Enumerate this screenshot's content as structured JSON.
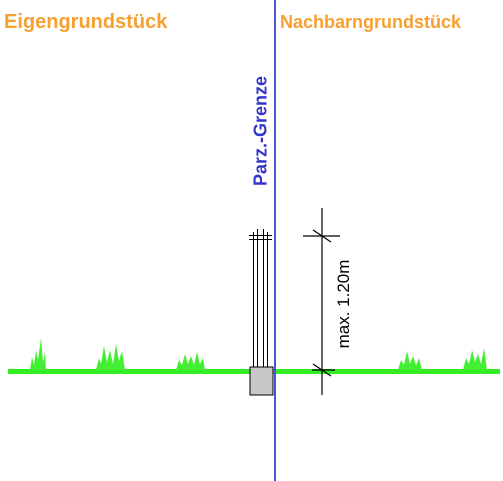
{
  "labels": {
    "own_property": "Eigengrundstück",
    "neighbor_property": "Nachbarngrundstück",
    "boundary": "Parz.-Grenze",
    "max_height": "max. 1.20m"
  },
  "colors": {
    "property_label": "#f7a030",
    "boundary_line": "#5050d8",
    "boundary_label": "#3434c8",
    "ground": "#33ee22",
    "grass": "#44ee33",
    "post_fill": "#c8c8c8",
    "line": "#000000"
  }
}
